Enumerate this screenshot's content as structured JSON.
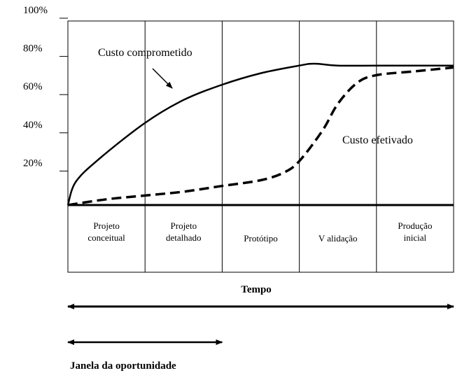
{
  "chart_data": {
    "type": "line",
    "title": "",
    "xlabel": "Tempo",
    "ylabel": "",
    "yticks": [
      "100%",
      "80%",
      "60%",
      "40%",
      "20%"
    ],
    "ytick_values": [
      100,
      80,
      60,
      40,
      20
    ],
    "ylim": [
      0,
      100
    ],
    "xlim": [
      0,
      5
    ],
    "phases": [
      {
        "lines": [
          "Projeto",
          "conceitual"
        ]
      },
      {
        "lines": [
          "Projeto",
          "detalhado"
        ]
      },
      {
        "lines": [
          "Protótipo"
        ]
      },
      {
        "lines": [
          "V alidação"
        ]
      },
      {
        "lines": [
          "Produção",
          "inicial"
        ]
      }
    ],
    "series": [
      {
        "name": "Custo comprometido",
        "style": "solid",
        "points": [
          [
            0,
            0
          ],
          [
            0.1,
            12
          ],
          [
            0.4,
            24
          ],
          [
            1,
            43
          ],
          [
            1.5,
            55
          ],
          [
            2,
            63
          ],
          [
            2.5,
            69
          ],
          [
            3,
            73
          ],
          [
            3.2,
            74
          ],
          [
            3.5,
            73
          ],
          [
            4,
            73
          ],
          [
            5,
            73
          ]
        ]
      },
      {
        "name": "Custo efetivado",
        "style": "dashed",
        "points": [
          [
            0,
            0
          ],
          [
            0.5,
            3
          ],
          [
            1,
            5
          ],
          [
            1.5,
            7
          ],
          [
            2,
            10
          ],
          [
            2.5,
            13
          ],
          [
            2.8,
            17
          ],
          [
            3,
            23
          ],
          [
            3.3,
            39
          ],
          [
            3.5,
            53
          ],
          [
            3.75,
            64
          ],
          [
            4,
            68
          ],
          [
            4.5,
            70
          ],
          [
            5,
            72
          ]
        ]
      }
    ],
    "annotations": {
      "committed_label": "Custo comprometido",
      "incurred_label": "Custo efetivado",
      "opportunity_label": "Janela  da oportunidade",
      "opportunity_span": [
        0,
        2
      ]
    },
    "grid": false,
    "legend": "none",
    "colors": {
      "line": "#000000",
      "background": "#ffffff"
    }
  }
}
